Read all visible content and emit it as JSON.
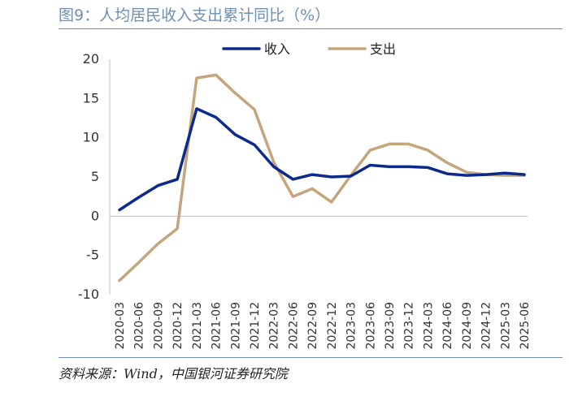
{
  "figure": {
    "title": "图9：人均居民收入支出累计同比（%）",
    "source": "资料来源：Wind，中国银河证券研究院"
  },
  "colors": {
    "income": "#0b2a8c",
    "expense": "#c4a57c",
    "rule": "#6f8fb5"
  },
  "chart_data": {
    "type": "line",
    "title": "图9：人均居民收入支出累计同比（%）",
    "xlabel": "",
    "ylabel": "",
    "ylim": [
      -10,
      20
    ],
    "yticks": [
      -10,
      -5,
      0,
      5,
      10,
      15,
      20
    ],
    "grid": false,
    "legend_position": "top",
    "x": [
      "2020-03",
      "2020-06",
      "2020-09",
      "2020-12",
      "2021-03",
      "2021-06",
      "2021-09",
      "2021-12",
      "2022-03",
      "2022-06",
      "2022-09",
      "2022-12",
      "2023-03",
      "2023-06",
      "2023-09",
      "2023-12",
      "2024-03",
      "2024-06",
      "2024-09",
      "2024-12",
      "2025-03",
      "2025-06"
    ],
    "series": [
      {
        "name": "收入",
        "color": "#0b2a8c",
        "values": [
          0.8,
          2.4,
          3.9,
          4.7,
          13.7,
          12.6,
          10.4,
          9.1,
          6.3,
          4.7,
          5.3,
          5.0,
          5.1,
          6.5,
          6.3,
          6.3,
          6.2,
          5.4,
          5.2,
          5.3,
          5.5,
          5.3
        ]
      },
      {
        "name": "支出",
        "color": "#c4a57c",
        "values": [
          -8.2,
          -5.9,
          -3.5,
          -1.6,
          17.6,
          18.0,
          15.7,
          13.6,
          6.9,
          2.5,
          3.5,
          1.8,
          5.2,
          8.4,
          9.2,
          9.2,
          8.4,
          6.8,
          5.6,
          5.3,
          5.2,
          5.2
        ]
      }
    ]
  }
}
